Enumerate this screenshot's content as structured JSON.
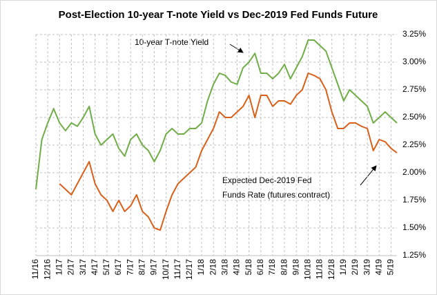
{
  "chart_data": {
    "type": "line",
    "title": "Post-Election 10-year T-note Yield vs Dec-2019 Fed Funds Future",
    "categories": [
      "11/16",
      null,
      "12/16",
      null,
      "1/17",
      null,
      "2/17",
      null,
      "3/17",
      null,
      "4/17",
      null,
      "5/17",
      null,
      "6/17",
      null,
      "7/17",
      null,
      "8/17",
      null,
      "9/17",
      null,
      "10/17",
      null,
      "11/17",
      null,
      "12/17",
      null,
      "1/18",
      null,
      "2/18",
      null,
      "3/18",
      null,
      "4/18",
      null,
      "5/18",
      null,
      "6/18",
      null,
      "7/18",
      null,
      "8/18",
      null,
      "9/18",
      null,
      "10/18",
      null,
      "11/18",
      null,
      "12/18",
      null,
      "1/19",
      null,
      "2/19",
      null,
      "3/19",
      null,
      "4/19",
      null,
      "5/19",
      null
    ],
    "series": [
      {
        "color": "#70ad47",
        "values": [
          1.85,
          2.3,
          2.45,
          2.58,
          2.45,
          2.38,
          2.45,
          2.42,
          2.5,
          2.6,
          2.35,
          2.25,
          2.3,
          2.35,
          2.22,
          2.15,
          2.3,
          2.35,
          2.25,
          2.2,
          2.1,
          2.2,
          2.35,
          2.4,
          2.35,
          2.35,
          2.4,
          2.4,
          2.45,
          2.65,
          2.8,
          2.9,
          2.88,
          2.82,
          2.8,
          2.95,
          3.0,
          3.08,
          2.9,
          2.9,
          2.85,
          2.9,
          2.98,
          2.85,
          2.95,
          3.05,
          3.2,
          3.2,
          3.15,
          3.1,
          2.95,
          2.8,
          2.65,
          2.75,
          2.7,
          2.65,
          2.6,
          2.45,
          2.5,
          2.55,
          2.5,
          2.45
        ]
      },
      {
        "color": "#d9601a",
        "values": [
          null,
          null,
          null,
          null,
          1.9,
          1.85,
          1.8,
          1.9,
          2.0,
          2.1,
          1.9,
          1.8,
          1.75,
          1.65,
          1.75,
          1.65,
          1.7,
          1.8,
          1.65,
          1.6,
          1.5,
          1.48,
          1.65,
          1.8,
          1.9,
          1.95,
          2.0,
          2.05,
          2.2,
          2.3,
          2.4,
          2.55,
          2.5,
          2.5,
          2.55,
          2.6,
          2.7,
          2.5,
          2.7,
          2.7,
          2.6,
          2.65,
          2.65,
          2.62,
          2.7,
          2.75,
          2.9,
          2.88,
          2.85,
          2.75,
          2.55,
          2.4,
          2.4,
          2.45,
          2.45,
          2.42,
          2.4,
          2.2,
          2.3,
          2.28,
          2.22,
          2.18
        ]
      }
    ],
    "ylim": [
      1.25,
      3.25
    ],
    "yticks": [
      {
        "value": 1.25,
        "label": "1.25%"
      },
      {
        "value": 1.5,
        "label": "1.50%"
      },
      {
        "value": 1.75,
        "label": "1.75%"
      },
      {
        "value": 2.0,
        "label": "2.00%"
      },
      {
        "value": 2.25,
        "label": "2.25%"
      },
      {
        "value": 2.5,
        "label": "2.50%"
      },
      {
        "value": 2.75,
        "label": "2.75%"
      },
      {
        "value": 3.0,
        "label": "3.00%"
      },
      {
        "value": 3.25,
        "label": "3.25%"
      }
    ],
    "grid": true,
    "annotations": [
      "10-year T-note Yield",
      "Expected Dec-2019 Fed",
      "Funds Rate (futures contract)"
    ]
  }
}
